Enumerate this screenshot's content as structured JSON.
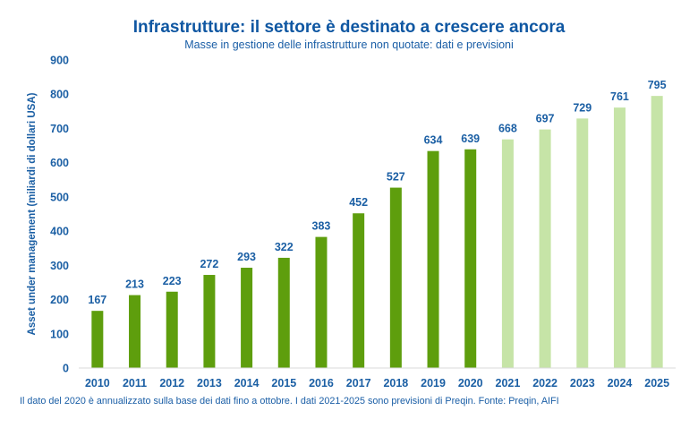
{
  "chart_data": {
    "type": "bar",
    "title": "Infrastrutture: il settore è destinato a crescere ancora",
    "subtitle": "Masse in gestione delle infrastrutture non quotate: dati e previsioni",
    "xlabel": "",
    "ylabel": "Asset under management (miliardi di dollari USA)",
    "ylim": [
      0,
      900
    ],
    "yticks": [
      0,
      100,
      200,
      300,
      400,
      500,
      600,
      700,
      800,
      900
    ],
    "grid": false,
    "legend": "none",
    "categories": [
      "2010",
      "2011",
      "2012",
      "2013",
      "2014",
      "2015",
      "2016",
      "2017",
      "2018",
      "2019",
      "2020",
      "2021",
      "2022",
      "2023",
      "2024",
      "2025"
    ],
    "values": [
      167,
      213,
      223,
      272,
      293,
      322,
      383,
      452,
      527,
      634,
      639,
      668,
      697,
      729,
      761,
      795
    ],
    "series_kind": [
      "actual",
      "actual",
      "actual",
      "actual",
      "actual",
      "actual",
      "actual",
      "actual",
      "actual",
      "actual",
      "actual",
      "forecast",
      "forecast",
      "forecast",
      "forecast",
      "forecast"
    ],
    "colors": {
      "actual": "#5e9e0d",
      "forecast": "#c6e4a7",
      "text": "#1b5fa4",
      "title": "#0f57a2",
      "axis": "#d9d9d9"
    }
  },
  "footnote": "Il dato del 2020 è annualizzato sulla base dei dati fino a ottobre. I dati 2021-2025 sono previsioni di Preqin. Fonte: Preqin, AIFI"
}
